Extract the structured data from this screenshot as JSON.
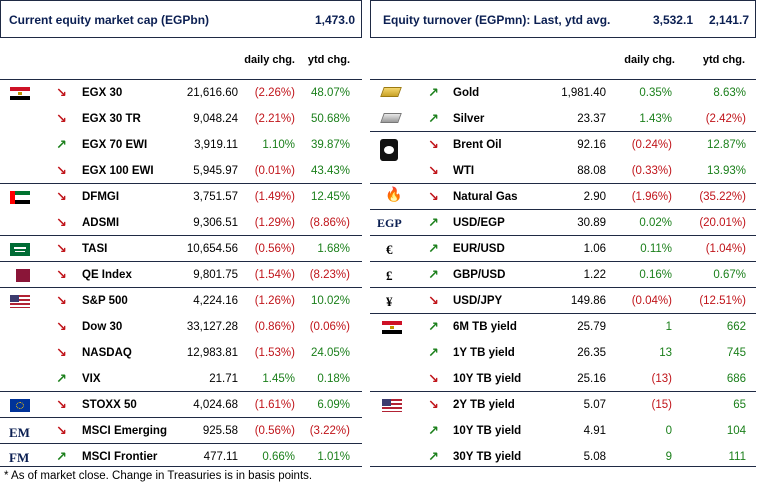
{
  "left": {
    "header": {
      "title": "Current equity market cap (EGPbn)",
      "value": "1,473.0"
    },
    "col_daily": "daily chg.",
    "col_ytd": "ytd chg.",
    "rows": [
      {
        "name": "EGX 30",
        "value": "21,616.60",
        "daily": "(2.26%)",
        "ytd": "48.07%",
        "dir": "down",
        "dneg": true,
        "yneg": false
      },
      {
        "name": "EGX 30 TR",
        "value": "9,048.24",
        "daily": "(2.21%)",
        "ytd": "50.68%",
        "dir": "down",
        "dneg": true,
        "yneg": false
      },
      {
        "name": "EGX 70 EWI",
        "value": "3,919.11",
        "daily": "1.10%",
        "ytd": "39.87%",
        "dir": "up",
        "dneg": false,
        "yneg": false
      },
      {
        "name": "EGX 100 EWI",
        "value": "5,945.97",
        "daily": "(0.01%)",
        "ytd": "43.43%",
        "dir": "down",
        "dneg": true,
        "yneg": false
      },
      {
        "name": "DFMGI",
        "value": "3,751.57",
        "daily": "(1.49%)",
        "ytd": "12.45%",
        "dir": "down",
        "dneg": true,
        "yneg": false
      },
      {
        "name": "ADSMI",
        "value": "9,306.51",
        "daily": "(1.29%)",
        "ytd": "(8.86%)",
        "dir": "down",
        "dneg": true,
        "yneg": true
      },
      {
        "name": "TASI",
        "value": "10,654.56",
        "daily": "(0.56%)",
        "ytd": "1.68%",
        "dir": "down",
        "dneg": true,
        "yneg": false
      },
      {
        "name": "QE Index",
        "value": "9,801.75",
        "daily": "(1.54%)",
        "ytd": "(8.23%)",
        "dir": "down",
        "dneg": true,
        "yneg": true
      },
      {
        "name": "S&P 500",
        "value": "4,224.16",
        "daily": "(1.26%)",
        "ytd": "10.02%",
        "dir": "down",
        "dneg": true,
        "yneg": false
      },
      {
        "name": "Dow 30",
        "value": "33,127.28",
        "daily": "(0.86%)",
        "ytd": "(0.06%)",
        "dir": "down",
        "dneg": true,
        "yneg": true
      },
      {
        "name": "NASDAQ",
        "value": "12,983.81",
        "daily": "(1.53%)",
        "ytd": "24.05%",
        "dir": "down",
        "dneg": true,
        "yneg": false
      },
      {
        "name": "VIX",
        "value": "21.71",
        "daily": "1.45%",
        "ytd": "0.18%",
        "dir": "up",
        "dneg": false,
        "yneg": false
      },
      {
        "name": "STOXX 50",
        "value": "4,024.68",
        "daily": "(1.61%)",
        "ytd": "6.09%",
        "dir": "down",
        "dneg": true,
        "yneg": false
      },
      {
        "name": "MSCI Emerging",
        "value": "925.58",
        "daily": "(0.56%)",
        "ytd": "(3.22%)",
        "dir": "down",
        "dneg": true,
        "yneg": true
      },
      {
        "name": "MSCI Frontier",
        "value": "477.11",
        "daily": "0.66%",
        "ytd": "1.01%",
        "dir": "up",
        "dneg": false,
        "yneg": false
      }
    ],
    "markers": {
      "em": "EM",
      "fm": "FM"
    }
  },
  "right": {
    "header": {
      "title": "Equity turnover (EGPmn): Last, ytd avg.",
      "last": "3,532.1",
      "avg": "2,141.7"
    },
    "col_daily": "daily chg.",
    "col_ytd": "ytd chg.",
    "rows": [
      {
        "name": "Gold",
        "value": "1,981.40",
        "daily": "0.35%",
        "ytd": "8.63%",
        "dir": "up",
        "dneg": false,
        "yneg": false
      },
      {
        "name": "Silver",
        "value": "23.37",
        "daily": "1.43%",
        "ytd": "(2.42%)",
        "dir": "up",
        "dneg": false,
        "yneg": true
      },
      {
        "name": "Brent Oil",
        "value": "92.16",
        "daily": "(0.24%)",
        "ytd": "12.87%",
        "dir": "down",
        "dneg": true,
        "yneg": false
      },
      {
        "name": "WTI",
        "value": "88.08",
        "daily": "(0.33%)",
        "ytd": "13.93%",
        "dir": "down",
        "dneg": true,
        "yneg": false
      },
      {
        "name": "Natural Gas",
        "value": "2.90",
        "daily": "(1.96%)",
        "ytd": "(35.22%)",
        "dir": "down",
        "dneg": true,
        "yneg": true
      },
      {
        "name": "USD/EGP",
        "value": "30.89",
        "daily": "0.02%",
        "ytd": "(20.01%)",
        "dir": "up",
        "dneg": false,
        "yneg": true
      },
      {
        "name": "EUR/USD",
        "value": "1.06",
        "daily": "0.11%",
        "ytd": "(1.04%)",
        "dir": "up",
        "dneg": false,
        "yneg": true
      },
      {
        "name": "GBP/USD",
        "value": "1.22",
        "daily": "0.16%",
        "ytd": "0.67%",
        "dir": "up",
        "dneg": false,
        "yneg": false
      },
      {
        "name": "USD/JPY",
        "value": "149.86",
        "daily": "(0.04%)",
        "ytd": "(12.51%)",
        "dir": "down",
        "dneg": true,
        "yneg": true
      },
      {
        "name": "6M TB yield",
        "value": "25.79",
        "daily": "1",
        "ytd": "662",
        "dir": "up",
        "dneg": false,
        "yneg": false
      },
      {
        "name": "1Y TB yield",
        "value": "26.35",
        "daily": "13",
        "ytd": "745",
        "dir": "up",
        "dneg": false,
        "yneg": false
      },
      {
        "name": "10Y TB yield",
        "value": "25.16",
        "daily": "(13)",
        "ytd": "686",
        "dir": "down",
        "dneg": true,
        "yneg": false
      },
      {
        "name": "2Y TB yield",
        "value": "5.07",
        "daily": "(15)",
        "ytd": "65",
        "dir": "down",
        "dneg": true,
        "yneg": false
      },
      {
        "name": "10Y TB yield",
        "value": "4.91",
        "daily": "0",
        "ytd": "104",
        "dir": "up",
        "dneg": false,
        "yneg": false
      },
      {
        "name": "30Y TB yield",
        "value": "5.08",
        "daily": "9",
        "ytd": "111",
        "dir": "up",
        "dneg": false,
        "yneg": false
      }
    ],
    "markers": {
      "egp": "EGP",
      "eur": "€",
      "gbp": "£",
      "jpy": "¥"
    }
  },
  "footnote": "* As of market close. Change in Treasuries is in basis points.",
  "colors": {
    "positive": "#1a7f1a",
    "negative": "#c0141a",
    "header_text": "#0b1f52"
  }
}
